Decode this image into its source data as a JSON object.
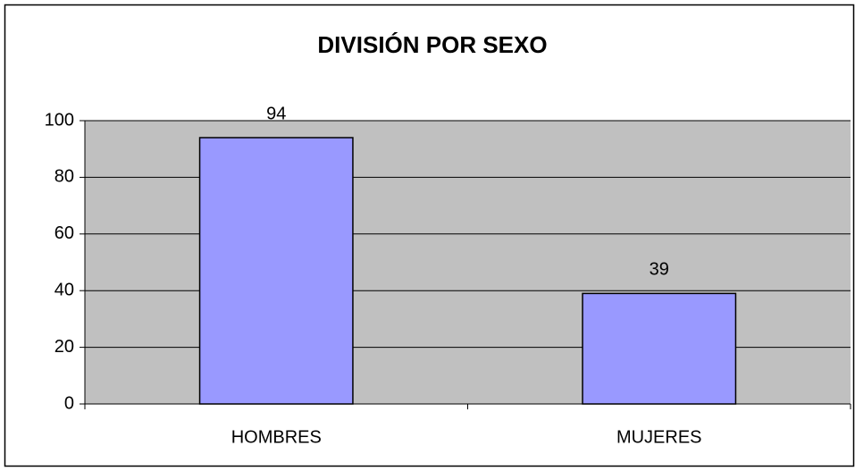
{
  "chart_data": {
    "type": "bar",
    "title": "DIVISIÓN POR SEXO",
    "categories": [
      "HOMBRES",
      "MUJERES"
    ],
    "values": [
      94,
      39
    ],
    "color": "#9999ff",
    "ylim": [
      0,
      100
    ],
    "yticks": [
      0,
      20,
      40,
      60,
      80,
      100
    ],
    "grid": true
  }
}
